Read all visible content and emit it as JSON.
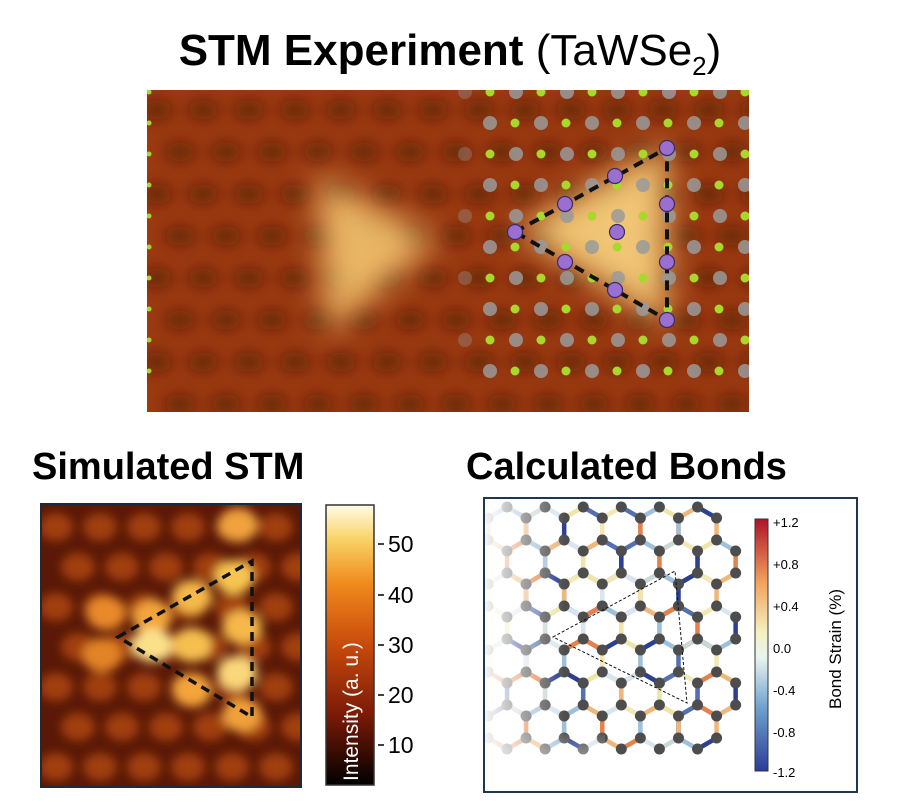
{
  "figure": {
    "top_title": {
      "main": "STM Experiment",
      "paren_open": "(",
      "formula": "TaWSe",
      "subscript": "2",
      "paren_close": ")"
    },
    "left_title": "Simulated STM",
    "right_title": "Calculated Bonds",
    "colorbar": {
      "label": "Intensity (a. u.)",
      "ticks": [
        "50",
        "40",
        "30",
        "20",
        "10"
      ]
    },
    "bond_colorbar": {
      "label": "Bond Strain (%)",
      "ticks": [
        "+1.2",
        "+0.8",
        "+0.4",
        "0.0",
        "-0.4",
        "-0.8",
        "-1.2"
      ]
    },
    "colors": {
      "heat_dark": "#3a0d06",
      "heat_mid": "#b5450f",
      "heat_bright": "#f6c96a",
      "lattice_green": "#a8d82c",
      "lattice_gray": "#9a9a9a",
      "purple_atom": "#9a6fd0",
      "strain_high": "#b2182b",
      "strain_low": "#2f3d9a"
    }
  }
}
